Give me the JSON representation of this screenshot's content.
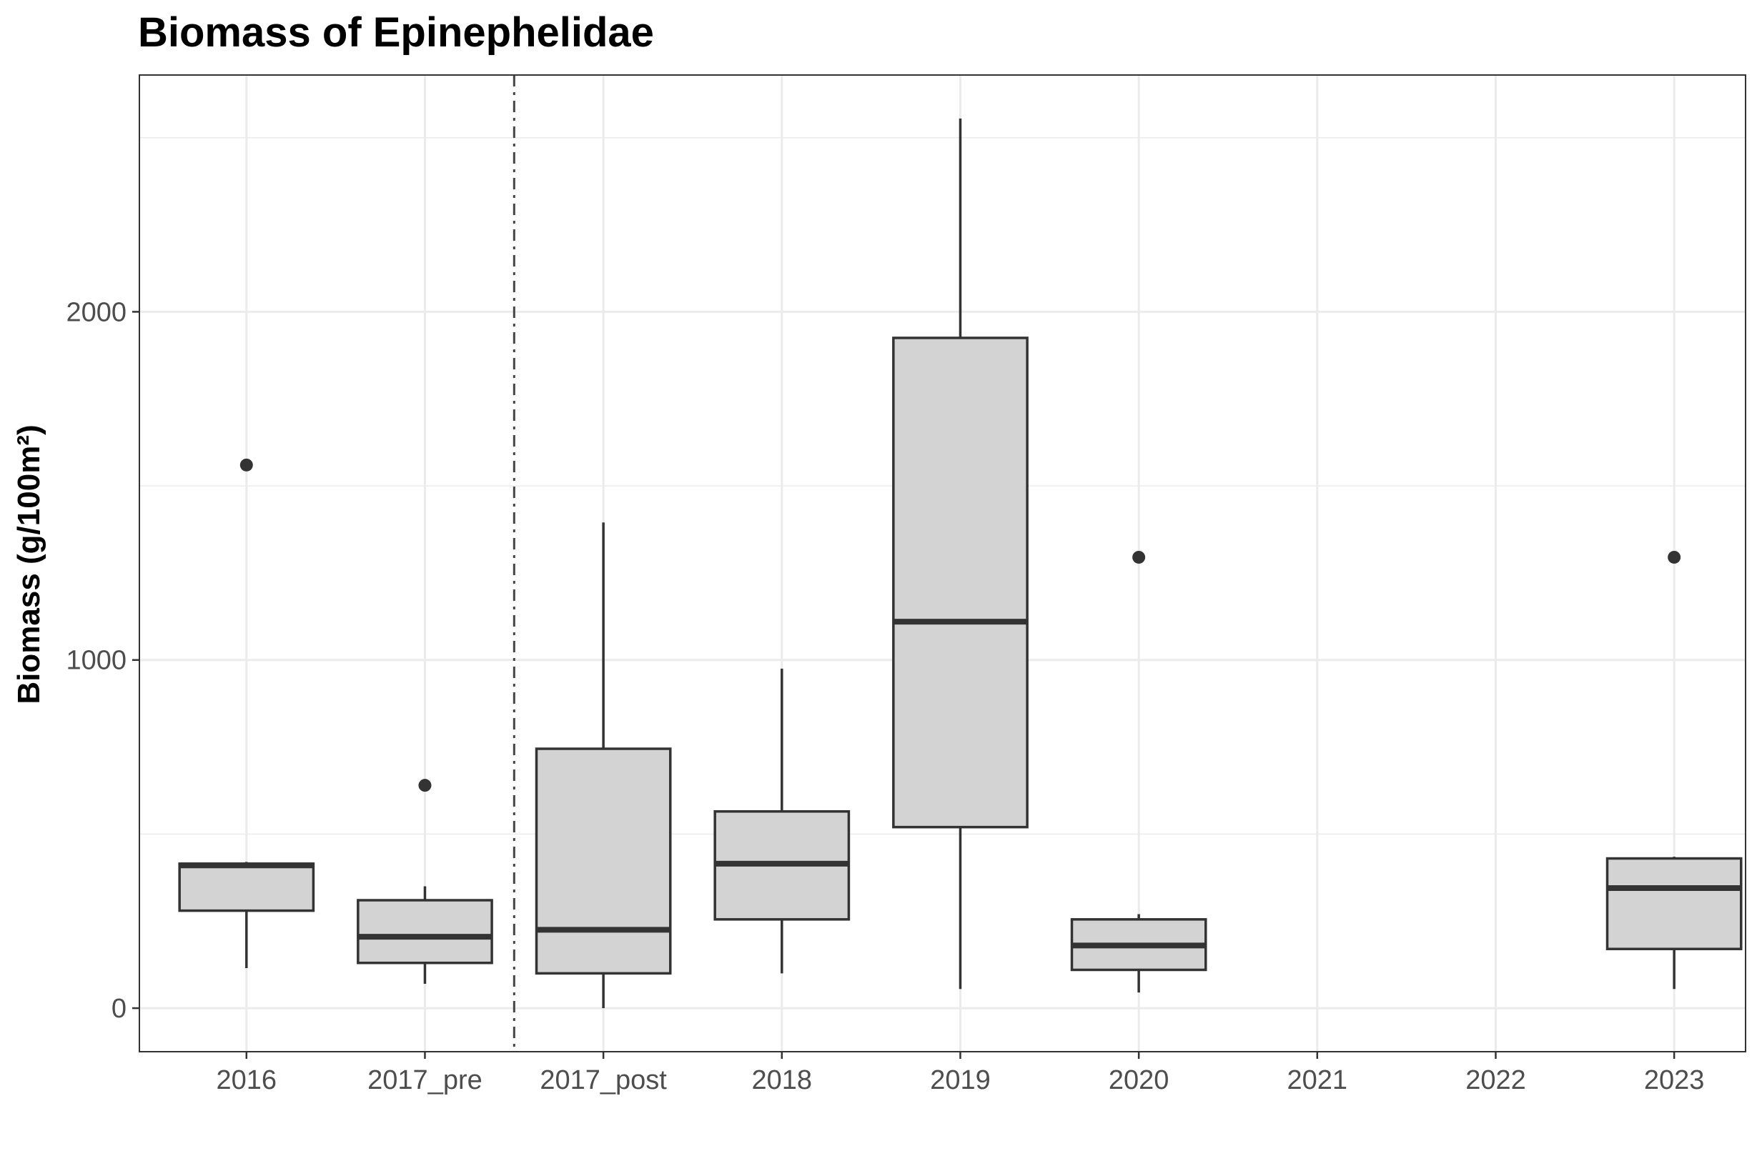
{
  "chart_data": {
    "type": "boxplot",
    "title": "Biomass of Epinephelidae",
    "xlabel": "",
    "ylabel": "Biomass (g/100m²)",
    "ylim": [
      -125,
      2680
    ],
    "yticks": [
      0,
      1000,
      2000
    ],
    "grid": true,
    "categories": [
      "2016",
      "2017_pre",
      "2017_post",
      "2018",
      "2019",
      "2020",
      "2021",
      "2022",
      "2023"
    ],
    "separator_after": "2017_pre",
    "boxes": [
      {
        "category": "2016",
        "whisker_low": 115,
        "q1": 280,
        "median": 410,
        "q3": 415,
        "whisker_high": 420,
        "outliers": [
          1560
        ]
      },
      {
        "category": "2017_pre",
        "whisker_low": 70,
        "q1": 130,
        "median": 205,
        "q3": 310,
        "whisker_high": 350,
        "outliers": [
          640
        ]
      },
      {
        "category": "2017_post",
        "whisker_low": 0,
        "q1": 100,
        "median": 225,
        "q3": 745,
        "whisker_high": 1395,
        "outliers": []
      },
      {
        "category": "2018",
        "whisker_low": 100,
        "q1": 255,
        "median": 415,
        "q3": 565,
        "whisker_high": 975,
        "outliers": []
      },
      {
        "category": "2019",
        "whisker_low": 55,
        "q1": 520,
        "median": 1110,
        "q3": 1925,
        "whisker_high": 2555,
        "outliers": []
      },
      {
        "category": "2020",
        "whisker_low": 45,
        "q1": 110,
        "median": 180,
        "q3": 255,
        "whisker_high": 270,
        "outliers": [
          1295
        ]
      },
      {
        "category": "2023",
        "whisker_low": 55,
        "q1": 170,
        "median": 345,
        "q3": 430,
        "whisker_high": 435,
        "outliers": [
          1295
        ]
      }
    ],
    "colors": {
      "box_fill": "#d3d3d3",
      "box_stroke": "#333333",
      "grid": "#ebebeb",
      "panel_border": "#333333",
      "separator": "#444444"
    }
  }
}
